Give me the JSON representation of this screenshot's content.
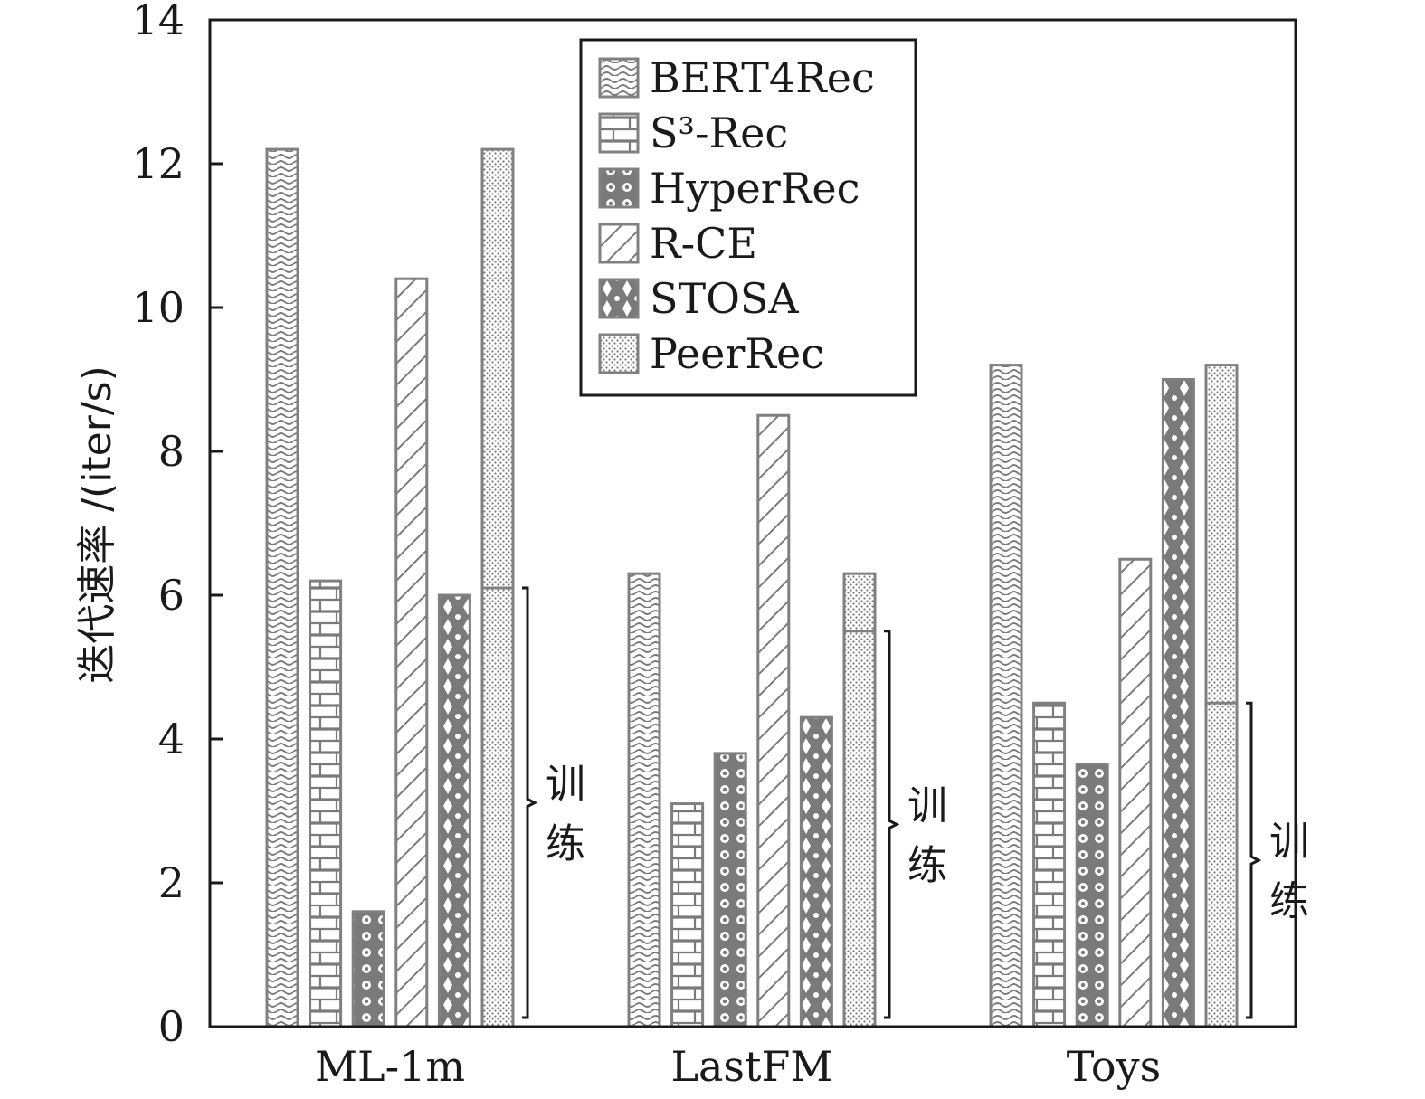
{
  "chart_data": {
    "type": "bar",
    "categories": [
      "ML-1m",
      "LastFM",
      "Toys"
    ],
    "ylabel": "迭代速率 /(iter/s)",
    "xlabel": "",
    "ylim": [
      0,
      14
    ],
    "yticks": [
      0,
      2,
      4,
      6,
      8,
      10,
      12,
      14
    ],
    "grid": false,
    "legend_position": "top-center",
    "series": [
      {
        "name": "BERT4Rec",
        "pattern": "wave",
        "values": [
          12.2,
          6.3,
          9.2
        ]
      },
      {
        "name": "S³-Rec",
        "pattern": "brick",
        "values": [
          6.2,
          3.1,
          4.5
        ]
      },
      {
        "name": "HyperRec",
        "pattern": "circles",
        "values": [
          1.6,
          3.8,
          3.65
        ]
      },
      {
        "name": "R-CE",
        "pattern": "diagonal",
        "values": [
          10.4,
          8.5,
          6.5
        ]
      },
      {
        "name": "STOSA",
        "pattern": "diamond",
        "values": [
          6.0,
          4.3,
          9.0
        ]
      },
      {
        "name": "PeerRec",
        "pattern": "dots",
        "values": [
          12.2,
          6.3,
          9.2
        ]
      }
    ],
    "peerrec_training": [
      6.1,
      5.5,
      4.5
    ],
    "annotation": "训练",
    "annotation_lines": [
      "训",
      "练"
    ],
    "colors": {
      "bar_stroke": "#808080",
      "pattern_ink": "#7a7a7a",
      "axis": "#1a1a1a"
    }
  }
}
